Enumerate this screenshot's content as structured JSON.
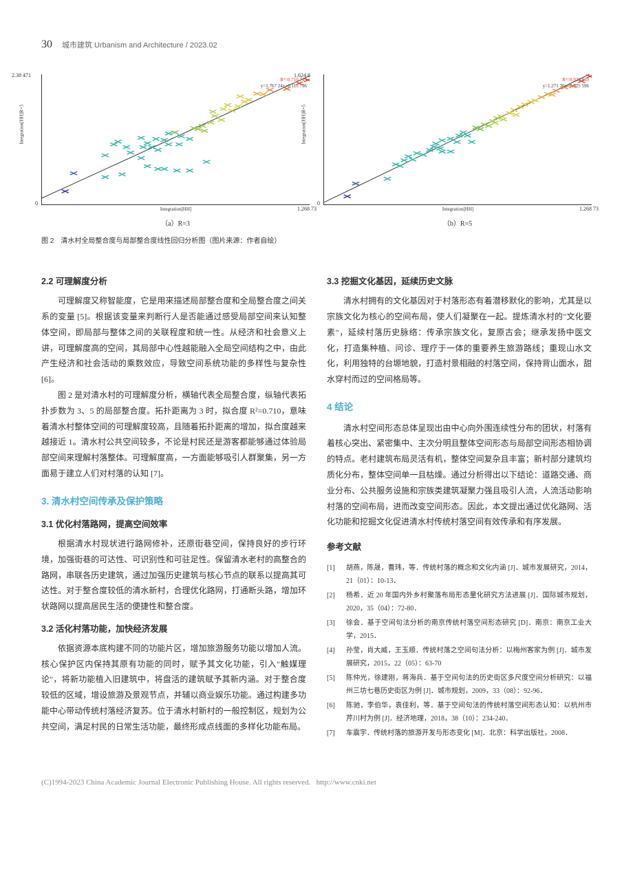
{
  "header": {
    "pageNumber": "30",
    "journal": "城市建筑 Urbanism and Architecture",
    "issue": "2023.02"
  },
  "figure": {
    "panels": [
      {
        "sublabel": "（a）R=3",
        "xlabel": "Integration[HH]",
        "ylabel": "Integration[HH]R=3",
        "xlim": [
          0,
          1.26873
        ],
        "xmax_label": "1.268 73",
        "ylim": [
          0,
          2.38471
        ],
        "ymax_label": "2.38 471",
        "ymin_label": "0",
        "equation_top": "R²=0.710 743",
        "equation_bot": "y=1.767 24x+0.115 796",
        "fit": {
          "slope": 1.76724,
          "intercept": 0.115796,
          "color": "#333333"
        },
        "points": [
          {
            "x": 0.11,
            "y": 0.24,
            "c": "#3a3ab0"
          },
          {
            "x": 0.15,
            "y": 0.57,
            "c": "#3462b8"
          },
          {
            "x": 0.3,
            "y": 0.5,
            "c": "#35b8a9"
          },
          {
            "x": 0.38,
            "y": 0.55,
            "c": "#35b8a9"
          },
          {
            "x": 0.3,
            "y": 0.9,
            "c": "#35b8a9"
          },
          {
            "x": 0.42,
            "y": 0.95,
            "c": "#35b8a9"
          },
          {
            "x": 0.34,
            "y": 1.1,
            "c": "#35b8a9"
          },
          {
            "x": 0.36,
            "y": 1.15,
            "c": "#35b8a9"
          },
          {
            "x": 0.4,
            "y": 1.05,
            "c": "#35b8a9"
          },
          {
            "x": 0.47,
            "y": 0.85,
            "c": "#35b8a9"
          },
          {
            "x": 0.48,
            "y": 1.05,
            "c": "#35b8a9"
          },
          {
            "x": 0.52,
            "y": 1.05,
            "c": "#35b8a9"
          },
          {
            "x": 0.55,
            "y": 1.0,
            "c": "#35b8a9"
          },
          {
            "x": 0.47,
            "y": 1.22,
            "c": "#35b8a9"
          },
          {
            "x": 0.5,
            "y": 1.12,
            "c": "#35b8a9"
          },
          {
            "x": 0.54,
            "y": 1.2,
            "c": "#35b8a9"
          },
          {
            "x": 0.58,
            "y": 1.18,
            "c": "#35b8a9"
          },
          {
            "x": 0.6,
            "y": 1.1,
            "c": "#35b8a9"
          },
          {
            "x": 0.6,
            "y": 1.3,
            "c": "#35b8a9"
          },
          {
            "x": 0.5,
            "y": 0.7,
            "c": "#35b8a9"
          },
          {
            "x": 0.55,
            "y": 0.65,
            "c": "#35b8a9"
          },
          {
            "x": 0.58,
            "y": 0.65,
            "c": "#35b8a9"
          },
          {
            "x": 0.64,
            "y": 0.62,
            "c": "#35b8a9"
          },
          {
            "x": 0.7,
            "y": 0.62,
            "c": "#35b8a9"
          },
          {
            "x": 0.78,
            "y": 0.78,
            "c": "#35b8a9"
          },
          {
            "x": 0.65,
            "y": 1.1,
            "c": "#35b8a9"
          },
          {
            "x": 0.63,
            "y": 1.32,
            "c": "#7cc24a"
          },
          {
            "x": 0.66,
            "y": 1.25,
            "c": "#35b8a9"
          },
          {
            "x": 0.7,
            "y": 1.2,
            "c": "#35b8a9"
          },
          {
            "x": 0.72,
            "y": 1.4,
            "c": "#9bc94e"
          },
          {
            "x": 0.74,
            "y": 1.38,
            "c": "#9bc94e"
          },
          {
            "x": 0.76,
            "y": 1.44,
            "c": "#9bc94e"
          },
          {
            "x": 0.77,
            "y": 1.35,
            "c": "#9bc94e"
          },
          {
            "x": 0.8,
            "y": 1.5,
            "c": "#b6cf4d"
          },
          {
            "x": 0.82,
            "y": 1.62,
            "c": "#b6cf4d"
          },
          {
            "x": 0.81,
            "y": 1.7,
            "c": "#b6cf4d"
          },
          {
            "x": 0.85,
            "y": 1.55,
            "c": "#b6cf4d"
          },
          {
            "x": 0.86,
            "y": 1.75,
            "c": "#d2ce46"
          },
          {
            "x": 0.9,
            "y": 1.72,
            "c": "#d2ce46"
          },
          {
            "x": 0.88,
            "y": 1.82,
            "c": "#d2ce46"
          },
          {
            "x": 0.93,
            "y": 1.8,
            "c": "#d2ce46"
          },
          {
            "x": 0.96,
            "y": 1.88,
            "c": "#e1c93f"
          },
          {
            "x": 0.94,
            "y": 1.98,
            "c": "#e1c93f"
          },
          {
            "x": 0.98,
            "y": 1.92,
            "c": "#e1c93f"
          },
          {
            "x": 1.02,
            "y": 2.03,
            "c": "#e9b23c"
          },
          {
            "x": 1.05,
            "y": 2.02,
            "c": "#e9b23c"
          },
          {
            "x": 1.08,
            "y": 2.1,
            "c": "#e98a36"
          },
          {
            "x": 1.16,
            "y": 2.12,
            "c": "#e57032"
          },
          {
            "x": 1.22,
            "y": 2.22,
            "c": "#d84d2d"
          },
          {
            "x": 1.26,
            "y": 2.28,
            "c": "#d43a2f"
          }
        ]
      },
      {
        "sublabel": "（b）R=5",
        "xlabel": "Integration[HH]",
        "ylabel": "Integration[HH]R=5",
        "xlim": [
          0,
          1.26873
        ],
        "xmax_label": "1.268 73",
        "ylim": [
          0,
          1.6248
        ],
        "ymax_label": "1.624 8",
        "ymin_label": "0",
        "equation_top": "R²=0.930 839",
        "equation_bot": "y=1.271 76x+0.025 596",
        "fit": {
          "slope": 1.27176,
          "intercept": 0.025596,
          "color": "#333333"
        },
        "points": [
          {
            "x": 0.11,
            "y": 0.1,
            "c": "#3a3ab0"
          },
          {
            "x": 0.15,
            "y": 0.26,
            "c": "#3462b8"
          },
          {
            "x": 0.3,
            "y": 0.32,
            "c": "#35b8a9"
          },
          {
            "x": 0.34,
            "y": 0.5,
            "c": "#35b8a9"
          },
          {
            "x": 0.36,
            "y": 0.48,
            "c": "#35b8a9"
          },
          {
            "x": 0.38,
            "y": 0.55,
            "c": "#35b8a9"
          },
          {
            "x": 0.4,
            "y": 0.6,
            "c": "#35b8a9"
          },
          {
            "x": 0.42,
            "y": 0.56,
            "c": "#35b8a9"
          },
          {
            "x": 0.44,
            "y": 0.64,
            "c": "#35b8a9"
          },
          {
            "x": 0.5,
            "y": 0.68,
            "c": "#35b8a9"
          },
          {
            "x": 0.47,
            "y": 0.62,
            "c": "#35b8a9"
          },
          {
            "x": 0.52,
            "y": 0.72,
            "c": "#35b8a9"
          },
          {
            "x": 0.55,
            "y": 0.7,
            "c": "#35b8a9"
          },
          {
            "x": 0.53,
            "y": 0.76,
            "c": "#35b8a9"
          },
          {
            "x": 0.56,
            "y": 0.8,
            "c": "#35b8a9"
          },
          {
            "x": 0.56,
            "y": 0.66,
            "c": "#35b8a9"
          },
          {
            "x": 0.6,
            "y": 0.66,
            "c": "#35b8a9"
          },
          {
            "x": 0.6,
            "y": 0.82,
            "c": "#35b8a9"
          },
          {
            "x": 0.63,
            "y": 0.78,
            "c": "#35b8a9"
          },
          {
            "x": 0.64,
            "y": 0.86,
            "c": "#35b8a9"
          },
          {
            "x": 0.66,
            "y": 0.9,
            "c": "#35b8a9"
          },
          {
            "x": 0.68,
            "y": 0.86,
            "c": "#35b8a9"
          },
          {
            "x": 0.7,
            "y": 0.78,
            "c": "#35b8a9"
          },
          {
            "x": 0.72,
            "y": 0.96,
            "c": "#7cc24a"
          },
          {
            "x": 0.74,
            "y": 0.94,
            "c": "#7cc24a"
          },
          {
            "x": 0.76,
            "y": 1.0,
            "c": "#9bc94e"
          },
          {
            "x": 0.78,
            "y": 0.98,
            "c": "#9bc94e"
          },
          {
            "x": 0.8,
            "y": 1.04,
            "c": "#9bc94e"
          },
          {
            "x": 0.82,
            "y": 1.08,
            "c": "#b6cf4d"
          },
          {
            "x": 0.81,
            "y": 1.02,
            "c": "#b6cf4d"
          },
          {
            "x": 0.84,
            "y": 1.1,
            "c": "#b6cf4d"
          },
          {
            "x": 0.85,
            "y": 1.06,
            "c": "#b6cf4d"
          },
          {
            "x": 0.88,
            "y": 1.14,
            "c": "#d2ce46"
          },
          {
            "x": 0.9,
            "y": 1.18,
            "c": "#d2ce46"
          },
          {
            "x": 0.91,
            "y": 1.12,
            "c": "#d2ce46"
          },
          {
            "x": 0.93,
            "y": 1.22,
            "c": "#e1c93f"
          },
          {
            "x": 0.95,
            "y": 1.25,
            "c": "#e1c93f"
          },
          {
            "x": 0.98,
            "y": 1.28,
            "c": "#e1c93f"
          },
          {
            "x": 1.0,
            "y": 1.3,
            "c": "#e1c93f"
          },
          {
            "x": 1.03,
            "y": 1.34,
            "c": "#e9b23c"
          },
          {
            "x": 1.06,
            "y": 1.38,
            "c": "#e9b23c"
          },
          {
            "x": 1.08,
            "y": 1.37,
            "c": "#e9b23c"
          },
          {
            "x": 1.1,
            "y": 1.42,
            "c": "#e98a36"
          },
          {
            "x": 1.14,
            "y": 1.46,
            "c": "#e98a36"
          },
          {
            "x": 1.18,
            "y": 1.48,
            "c": "#e57032"
          },
          {
            "x": 1.22,
            "y": 1.54,
            "c": "#d84d2d"
          },
          {
            "x": 1.26,
            "y": 1.6,
            "c": "#d43a2f"
          }
        ]
      }
    ],
    "caption": "图 2　清水村全局整合度与局部整合度线性回归分析图（图片来源：作者自绘）"
  },
  "left": {
    "h2_22": "2.2 可理解度分析",
    "p221": "可理解度又称智能度，它是用来描述局部整合度和全局整合度之间关系的变量 [5]。根据该变量来判断行人是否能通过感受局部空间来认知整体空间，即局部与整体之间的关联程度和统一性。从经济和社会意义上讲，可理解度高的空间，其局部中心性越能融入全局空间结构之中，由此产生经济和社会活动的乘数效应，导致空间系统功能的多样性与复杂性 [6]。",
    "p222": "图 2 是对清水村的可理解度分析，横轴代表全局整合度，纵轴代表拓扑步数为 3、5 的局部整合度。拓扑距离为 3 时，拟合度 R²=0.710，意味着清水村整体空间的可理解度较高，且随着拓扑距离的增加，拟合度越来越接近 1。清水村公共空间较多，不论是村民还是游客都能够通过体验局部空间来理解村落整体。可理解度高，一方面能够吸引人群聚集，另一方面易于建立人们对村落的认知 [7]。",
    "h1_3": "3. 清水村空间传承及保护策略",
    "h2_31": "3.1 优化村落路网，提高空间效率",
    "p31": "根据清水村现状进行路网修补，还原街巷空间，保持良好的步行环境，加强街巷的可达性、可识别性和可驻足性。保留清水老村的高整合的路网，串联各历史建筑，通过加强历史建筑与核心节点的联系以提高其可达性。对于整合度较低的清水新村，合理优化路网，打通断头路，增加环状路网以提高居民生活的便捷性和整合度。",
    "h2_32": "3.2 活化村落功能，加快经济发展",
    "p32": "依据资源本底构建不同的功能片区，增加旅游服务功能以增加人流。核心保护区内保持其原有功能的同时，赋予其文化功能，引入\"触媒理论\"，将新功能植入旧建筑中，将盘活的建筑赋予其新内涵。对于整合度较低的区域，增设旅游及景观节点，并辅以商业娱乐功能。通过构建多功能中心带动传统村落经济复苏。位于清水村新村的一般控制区，规划为公共空间，满足村民的日常生活功能，最终形成点线面的多样化功能布局。"
  },
  "right": {
    "h2_33": "3.3 挖掘文化基因，延续历史文脉",
    "p33": "清水村拥有的文化基因对于村落形态有着潜移默化的影响，尤其是以宗族文化为核心的空间布局，使人们凝聚在一起。提炼清水村的\"文化要素\"，延续村落历史脉络：传承宗族文化，复原古会；继承发扬中医文化，打造集种植、问诊、理疗于一体的重要养生旅游路线；重现山水文化，利用独特的台塬地貌，打造村景相融的村落空间，保持背山面水，甜水穿村而过的空间格局等。",
    "h1_4": "4 结论",
    "p4": "清水村空间形态总体呈现出由中心向外围连续性分布的团状，村落有着核心突出、紧密集中、主次分明且整体空间形态与局部空间形态相协调的特点。老村建筑布局灵活有机，整体空间复杂且丰富；新村部分建筑均质化分布，整体空间单一且枯燥。通过分析得出以下结论：道路交通、商业分布、公共服务设施和宗族类建筑凝聚力强且吸引人流，人流活动影响村落的空间布局，进而改变空间形态。因此，本文提出通过优化路网、活化功能和挖掘文化促进清水村传统村落空间有效传承和有序发展。",
    "refs_title": "参考文献",
    "refs": [
      {
        "n": "[1]",
        "t": "胡燕，陈晟，曹玮，等．传统村落的概念和文化内涵 [J]．城市发展研究，2014，21（01）：10-13．"
      },
      {
        "n": "[2]",
        "t": "杨希．近 20 年国内外乡村聚落布局形态量化研究方法进展 [J]．国际城市规划，2020，35（04）：72-80．"
      },
      {
        "n": "[3]",
        "t": "徐会．基于空间句法分析的南京传统村落空间形态研究 [D]．南京：南京工业大学，2015．"
      },
      {
        "n": "[4]",
        "t": "孙莹，肖大威，王玉顺．传统村落之空间句法分析：以梅州客家为例 [J]．城市发展研究，2015，22（05）：63-70"
      },
      {
        "n": "[5]",
        "t": "陈仲光，徐建刚，蒋海兵．基于空间句法的历史街区多尺度空间分析研究：以福州三坊七巷历史街区为例 [J]．城市规划，2009，33（08）：92-96．"
      },
      {
        "n": "[6]",
        "t": "陈驰，李伯华，袁佳利，等．基于空间句法的传统村落空间形态认知：以杭州市芹川村为例 [J]．经济地理，2018，38（10）：234-240．"
      },
      {
        "n": "[7]",
        "t": "车震宇．传统村落的旅游开发与形态变化 [M]．北京：科学出版社，2008．"
      }
    ]
  },
  "footer": {
    "text": "(C)1994-2023 China Academic Journal Electronic Publishing House. All rights reserved.",
    "url": "http://www.cnki.net"
  }
}
